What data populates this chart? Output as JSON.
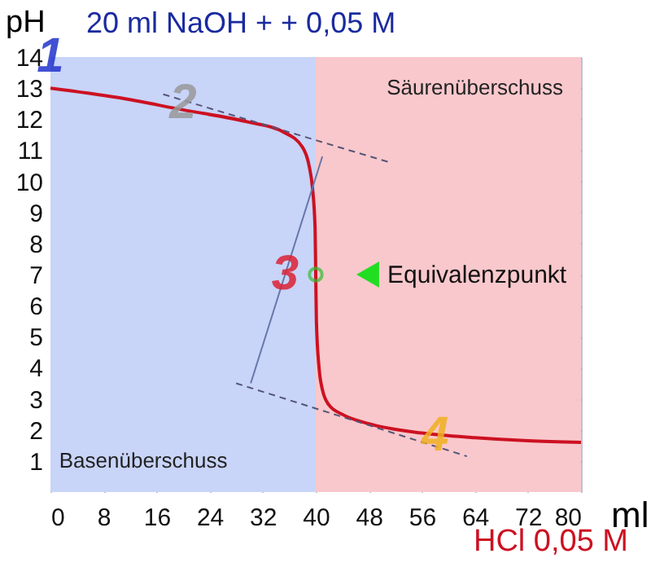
{
  "chart_data": {
    "type": "line",
    "title": "20 ml NaOH + + 0,05 M",
    "xlabel": "ml",
    "ylabel": "pH",
    "annotations": [
      "HCl 0,05 M",
      {
        "text": "Equivalenzpunkt",
        "x": 40,
        "y": 7
      },
      {
        "text": "1",
        "x": 0,
        "y": 14
      },
      {
        "text": "2",
        "x": 20,
        "y": 12.5
      },
      {
        "text": "3",
        "x": 35.4,
        "y": 7
      },
      {
        "text": "4",
        "x": 58,
        "y": 1.8
      }
    ],
    "series": [
      {
        "color": "#cc1122",
        "x": [
          0,
          10,
          20,
          30,
          35,
          38,
          39,
          39.5,
          39.9,
          40,
          40.1,
          40.5,
          41,
          42,
          44,
          48,
          56,
          64,
          72,
          80
        ],
        "values": [
          13,
          12.7,
          12.3,
          11.9,
          11.6,
          11.1,
          10.5,
          9.8,
          8.5,
          7,
          5.5,
          4,
          3.3,
          2.8,
          2.5,
          2.2,
          1.9,
          1.75,
          1.65,
          1.6
        ]
      },
      {
        "color": "#555577",
        "line_style": "dashed",
        "x": [
          17,
          51.3
        ],
        "values": [
          12.8,
          10.6
        ]
      },
      {
        "color": "#555577",
        "line_style": "dashed",
        "x": [
          28,
          62.8
        ],
        "values": [
          3.5,
          1.15
        ]
      },
      {
        "color": "#6677aa",
        "line_style": "solid",
        "x": [
          30.2,
          41
        ],
        "values": [
          3.5,
          10.8
        ]
      },
      {
        "type": "scatter",
        "color": "#33bb33",
        "marker": "circle",
        "x": [
          40
        ],
        "values": [
          7
        ]
      }
    ],
    "xlim": [
      0,
      80
    ],
    "ylim": [
      0,
      14
    ],
    "xticks": [
      0,
      8,
      16,
      24,
      32,
      40,
      48,
      56,
      64,
      72,
      80
    ],
    "yticks": [
      1,
      2,
      3,
      4,
      5,
      6,
      7,
      8,
      9,
      10,
      11,
      12,
      13,
      14
    ],
    "grid": true,
    "bands": [
      {
        "axis": "x",
        "from": 0,
        "to": 40,
        "label": "Basenüberschuss",
        "color": "#c8d4f8"
      },
      {
        "axis": "x",
        "from": 40,
        "to": 80,
        "label": "Säurenüberschuss",
        "color": "#f9c8cc"
      }
    ]
  }
}
